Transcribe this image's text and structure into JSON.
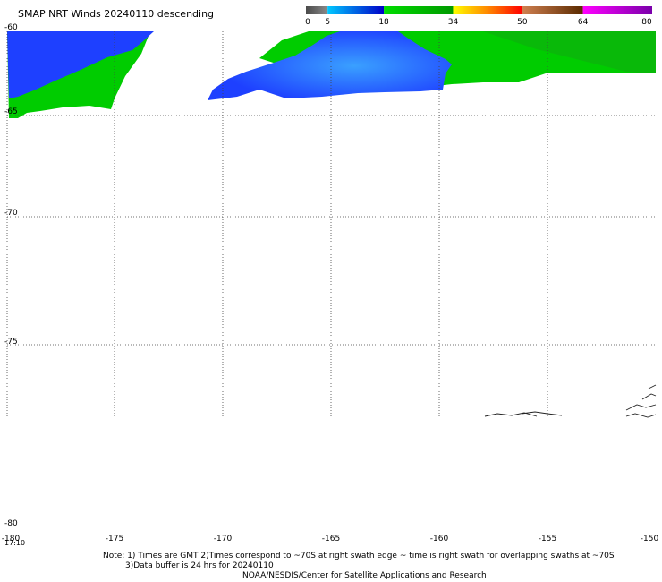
{
  "title": "SMAP NRT Winds  20240110 descending",
  "colorbar": {
    "tick_labels": [
      "0",
      "5",
      "18",
      "34",
      "50",
      "64",
      "80"
    ],
    "segments": [
      {
        "from": 0,
        "to": 5,
        "colors": [
          "#4a4a4a",
          "#8a8a8a"
        ]
      },
      {
        "from": 5,
        "to": 18,
        "colors": [
          "#00c8ff",
          "#0000c8"
        ]
      },
      {
        "from": 18,
        "to": 34,
        "colors": [
          "#00dd00",
          "#009900"
        ]
      },
      {
        "from": 34,
        "to": 50,
        "colors": [
          "#ffff00",
          "#ff8800",
          "#ff0000"
        ]
      },
      {
        "from": 50,
        "to": 64,
        "colors": [
          "#d08050",
          "#5a2a00"
        ]
      },
      {
        "from": 64,
        "to": 80,
        "colors": [
          "#ff00ff",
          "#7a00aa"
        ]
      }
    ]
  },
  "map": {
    "lat_labels": [
      "-60",
      "-65",
      "-70",
      "-75",
      "-80"
    ],
    "lon_labels": [
      "-180",
      "-175",
      "-170",
      "-165",
      "-160",
      "-155",
      "-150"
    ],
    "time_label": "17:10",
    "swath_colors": {
      "low_wind": "#1e40ff",
      "low_wind_core": "#3aa0ff",
      "mid_wind": "#00cc00",
      "mid_wind_dark": "#12a812"
    }
  },
  "notes": {
    "line1": "Note: 1) Times are GMT 2)Times correspond to ~70S at right swath edge ~ time is right swath for overlapping swaths at ~70S",
    "line2": "3)Data buffer is 24 hrs for 20240110",
    "line3": "NOAA/NESDIS/Center for Satellite Applications and Research"
  }
}
